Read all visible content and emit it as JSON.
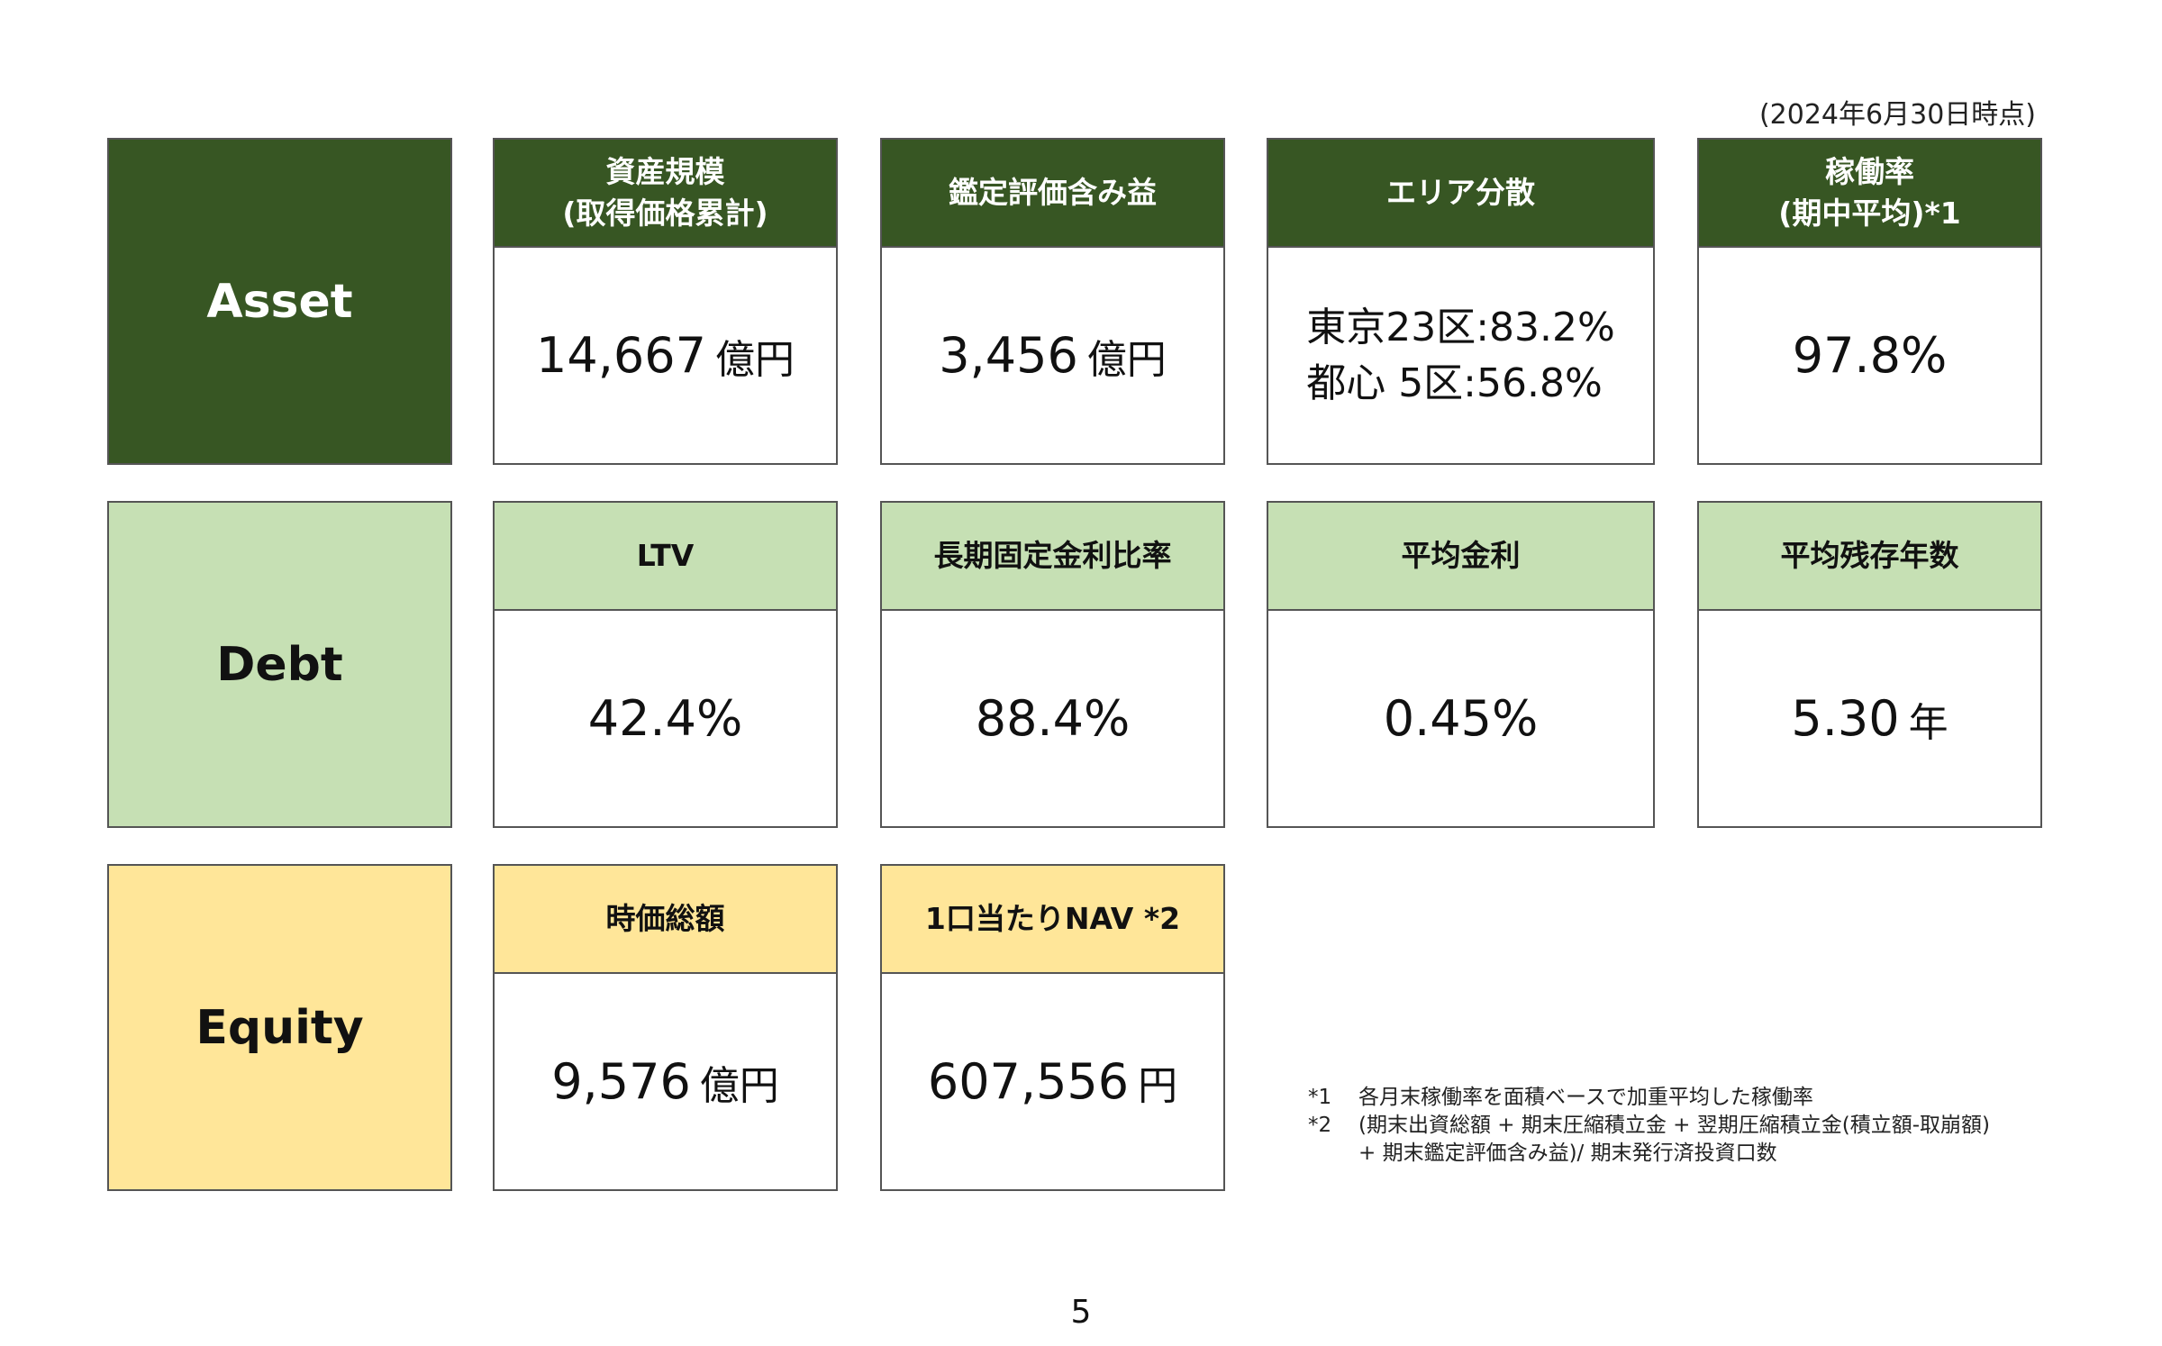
{
  "as_of": "(2024年6月30日時点)",
  "categories": {
    "asset": "Asset",
    "debt": "Debt",
    "equity": "Equity"
  },
  "asset": {
    "asset_size": {
      "title_line1": "資産規模",
      "title_line2": "(取得価格累計)",
      "value": "14,667",
      "unit": "億円"
    },
    "unrealized_gain": {
      "title": "鑑定評価含み益",
      "value": "3,456",
      "unit": "億円"
    },
    "area": {
      "title": "エリア分散",
      "line1": "東京23区:83.2%",
      "line2": "都心 5区:56.8%"
    },
    "occupancy": {
      "title_line1": "稼働率",
      "title_line2": "(期中平均)*1",
      "value": "97.8%"
    }
  },
  "debt": {
    "ltv": {
      "title": "LTV",
      "value": "42.4%"
    },
    "fixed_rate_ratio": {
      "title": "長期固定金利比率",
      "value": "88.4%"
    },
    "avg_interest": {
      "title": "平均金利",
      "value": "0.45%"
    },
    "avg_remaining": {
      "title": "平均残存年数",
      "value": "5.30",
      "unit": "年"
    }
  },
  "equity": {
    "market_cap": {
      "title": "時価総額",
      "value": "9,576",
      "unit": "億円"
    },
    "nav_per_unit": {
      "title": "1口当たりNAV *2",
      "value": "607,556",
      "unit": "円"
    }
  },
  "notes": {
    "note1_mark": "*1",
    "note1_text": "各月末稼働率を面積ベースで加重平均した稼働率",
    "note2_mark": "*2",
    "note2_line1": "(期末出資総額 + 期末圧縮積立金 + 翌期圧縮積立金(積立額-取崩額)",
    "note2_line2": "+ 期末鑑定評価含み益)/ 期末発行済投資口数"
  },
  "page_number": "5",
  "colors": {
    "asset_dark_green": "#375623",
    "debt_light_green": "#c6e0b4",
    "equity_yellow": "#ffe699"
  }
}
